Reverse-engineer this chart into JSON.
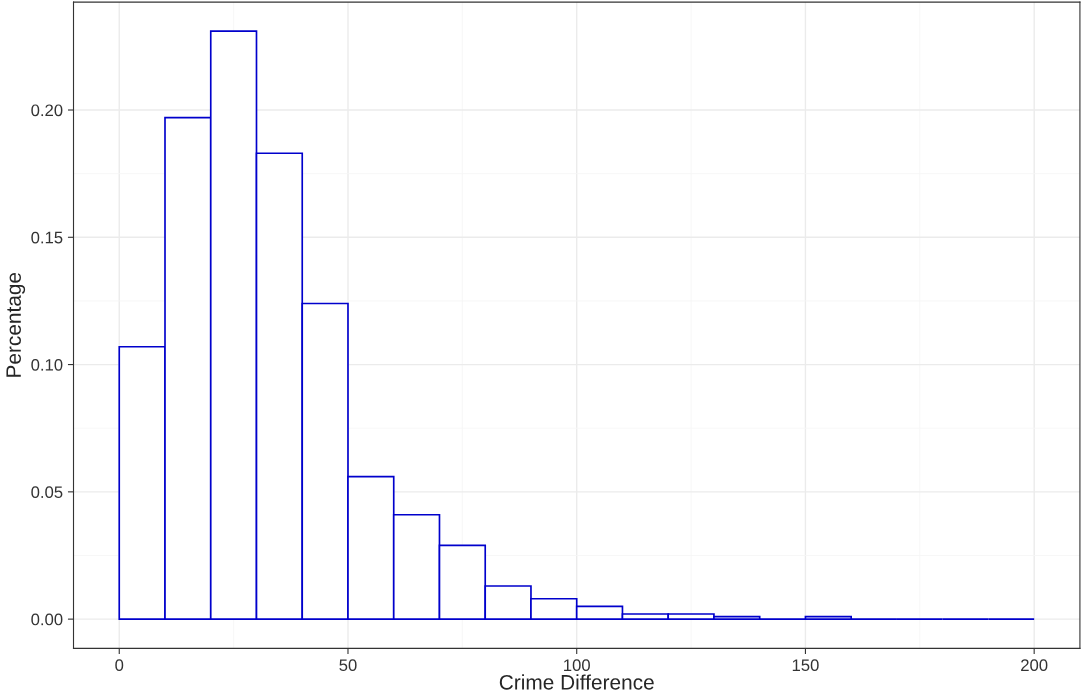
{
  "chart_data": {
    "type": "histogram",
    "xlabel": "Crime Difference",
    "ylabel": "Percentage",
    "bins": [
      0,
      10,
      20,
      30,
      40,
      50,
      60,
      70,
      80,
      90,
      100,
      110,
      120,
      130,
      140,
      150,
      160,
      170,
      180,
      190,
      200
    ],
    "values": [
      0.107,
      0.197,
      0.231,
      0.183,
      0.124,
      0.056,
      0.041,
      0.029,
      0.013,
      0.008,
      0.005,
      0.002,
      0.002,
      0.001,
      0,
      0.001,
      0,
      0,
      0,
      0
    ],
    "color": "#0000cc",
    "xlim": [
      -10,
      210
    ],
    "xticks": [
      0,
      50,
      100,
      150,
      200
    ],
    "ylim": [
      -0.0115,
      0.2424
    ],
    "yticks": [
      {
        "value": 0,
        "label": "0.00"
      },
      {
        "value": 0.05,
        "label": "0.05"
      },
      {
        "value": 0.1,
        "label": "0.10"
      },
      {
        "value": 0.15,
        "label": "0.15"
      },
      {
        "value": 0.2,
        "label": "0.20"
      }
    ],
    "grid": true
  }
}
